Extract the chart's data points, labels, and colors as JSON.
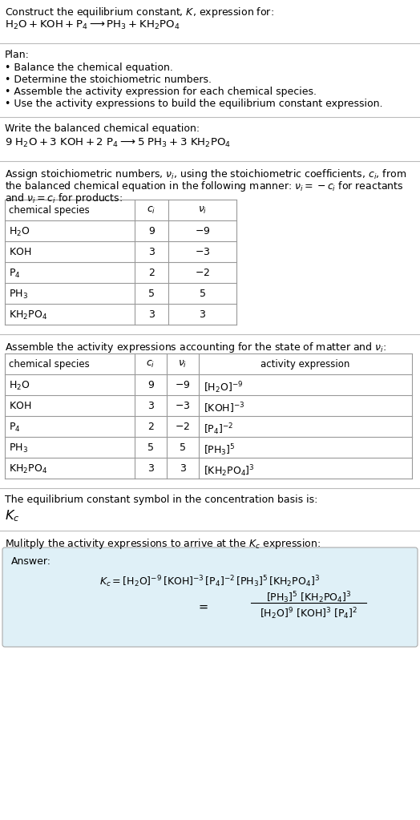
{
  "bg_color": "#ffffff",
  "text_color": "#000000",
  "table_border_color": "#999999",
  "answer_box_color": "#dff0f7",
  "section_line_color": "#bbbbbb",
  "fs": 9.0,
  "fs_math": 9.5,
  "title1": "Construct the equilibrium constant, $K$, expression for:",
  "title2": "$\\mathrm{H_2O + KOH + P_4} \\longrightarrow \\mathrm{PH_3 + KH_2PO_4}$",
  "plan_header": "Plan:",
  "plan_items": [
    "\\bullet\\ Balance the chemical equation.",
    "\\bullet\\ Determine the stoichiometric numbers.",
    "\\bullet\\ Assemble the activity expression for each chemical species.",
    "\\bullet\\ Use the activity expressions to build the equilibrium constant expression."
  ],
  "balanced_header": "Write the balanced chemical equation:",
  "balanced_eq": "$9\\ \\mathrm{H_2O} + 3\\ \\mathrm{KOH} + 2\\ \\mathrm{P_4} \\longrightarrow 5\\ \\mathrm{PH_3} + 3\\ \\mathrm{KH_2PO_4}$",
  "stoich_line1": "Assign stoichiometric numbers, $\\nu_i$, using the stoichiometric coefficients, $c_i$, from",
  "stoich_line2": "the balanced chemical equation in the following manner: $\\nu_i = -c_i$ for reactants",
  "stoich_line3": "and $\\nu_i = c_i$ for products:",
  "table1_header": [
    "chemical species",
    "$c_i$",
    "$\\nu_i$"
  ],
  "table1_rows": [
    [
      "$\\mathrm{H_2O}$",
      "9",
      "$-9$"
    ],
    [
      "$\\mathrm{KOH}$",
      "3",
      "$-3$"
    ],
    [
      "$\\mathrm{P_4}$",
      "2",
      "$-2$"
    ],
    [
      "$\\mathrm{PH_3}$",
      "5",
      "5"
    ],
    [
      "$\\mathrm{KH_2PO_4}$",
      "3",
      "3"
    ]
  ],
  "activity_header": "Assemble the activity expressions accounting for the state of matter and $\\nu_i$:",
  "table2_header": [
    "chemical species",
    "$c_i$",
    "$\\nu_i$",
    "activity expression"
  ],
  "table2_rows": [
    [
      "$\\mathrm{H_2O}$",
      "9",
      "$-9$",
      "$[\\mathrm{H_2O}]^{-9}$"
    ],
    [
      "$\\mathrm{KOH}$",
      "3",
      "$-3$",
      "$[\\mathrm{KOH}]^{-3}$"
    ],
    [
      "$\\mathrm{P_4}$",
      "2",
      "$-2$",
      "$[\\mathrm{P_4}]^{-2}$"
    ],
    [
      "$\\mathrm{PH_3}$",
      "5",
      "5",
      "$[\\mathrm{PH_3}]^{5}$"
    ],
    [
      "$\\mathrm{KH_2PO_4}$",
      "3",
      "3",
      "$[\\mathrm{KH_2PO_4}]^{3}$"
    ]
  ],
  "kc_header": "The equilibrium constant symbol in the concentration basis is:",
  "kc_symbol": "$K_c$",
  "multiply_header": "Mulitply the activity expressions to arrive at the $K_c$ expression:",
  "answer_label": "Answer:",
  "kc_line1": "$K_c = [\\mathrm{H_2O}]^{-9}\\,[\\mathrm{KOH}]^{-3}\\,[\\mathrm{P_4}]^{-2}\\,[\\mathrm{PH_3}]^{5}\\,[\\mathrm{KH_2PO_4}]^{3}$",
  "kc_eq_sign": "$=$",
  "kc_fraction_num": "$[\\mathrm{PH_3}]^{5}\\,[\\mathrm{KH_2PO_4}]^{3}$",
  "kc_fraction_den": "$[\\mathrm{H_2O}]^{9}\\,[\\mathrm{KOH}]^{3}\\,[\\mathrm{P_4}]^{2}$"
}
